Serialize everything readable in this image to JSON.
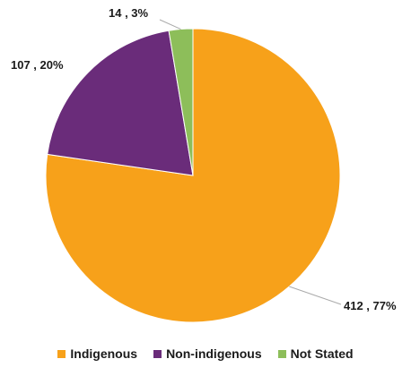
{
  "chart_data": {
    "type": "pie",
    "title": "",
    "categories": [
      "Indigenous",
      "Non-indigenous",
      "Not Stated"
    ],
    "values": [
      412,
      107,
      14
    ],
    "percent_labels": [
      "412 , 77%",
      "107 , 20%",
      "14 , 3%"
    ],
    "colors": [
      "#F7A11A",
      "#6A2C7A",
      "#8DBE5A"
    ],
    "legend_position": "bottom",
    "start_angle": "top, clockwise"
  },
  "legend": {
    "items": [
      {
        "label": "Indigenous",
        "color": "#F7A11A"
      },
      {
        "label": "Non-indigenous",
        "color": "#6A2C7A"
      },
      {
        "label": "Not Stated",
        "color": "#8DBE5A"
      }
    ]
  }
}
